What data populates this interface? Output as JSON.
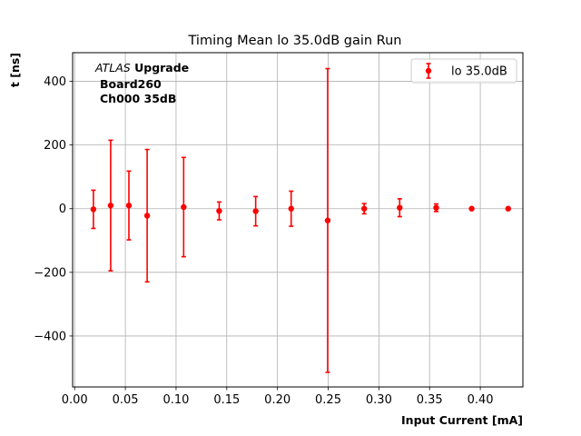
{
  "chart_data": {
    "type": "scatter",
    "title": "Timing Mean lo 35.0dB gain Run",
    "xlabel": "Input Current [mA]",
    "ylabel": "t [ns]",
    "xlim": [
      -0.002,
      0.442
    ],
    "ylim": [
      -560,
      490
    ],
    "xticks": [
      0.0,
      0.05,
      0.1,
      0.15,
      0.2,
      0.25,
      0.3,
      0.35,
      0.4
    ],
    "xtick_labels": [
      "0.00",
      "0.05",
      "0.10",
      "0.15",
      "0.20",
      "0.25",
      "0.30",
      "0.35",
      "0.40"
    ],
    "yticks": [
      -400,
      -200,
      0,
      200,
      400
    ],
    "ytick_labels": [
      "−400",
      "−200",
      "0",
      "200",
      "400"
    ],
    "grid": true,
    "legend_position": "top-right",
    "annotation": {
      "italic": "ATLAS",
      "bold": "Upgrade",
      "line2": "Board260",
      "line3": "Ch000 35dB"
    },
    "series": [
      {
        "name": "lo 35.0dB",
        "color": "#ff0000",
        "x": [
          0.0185,
          0.0355,
          0.0535,
          0.0715,
          0.1075,
          0.1425,
          0.1785,
          0.2135,
          0.2495,
          0.2855,
          0.3205,
          0.3565,
          0.3915,
          0.4275
        ],
        "y": [
          -2,
          10,
          10,
          -22,
          5,
          -7,
          -8,
          0,
          -37,
          0,
          3,
          3,
          0,
          0
        ],
        "yerr": [
          60,
          205,
          108,
          208,
          156,
          28,
          46,
          55,
          477,
          16,
          28,
          12,
          3,
          3
        ]
      }
    ]
  }
}
